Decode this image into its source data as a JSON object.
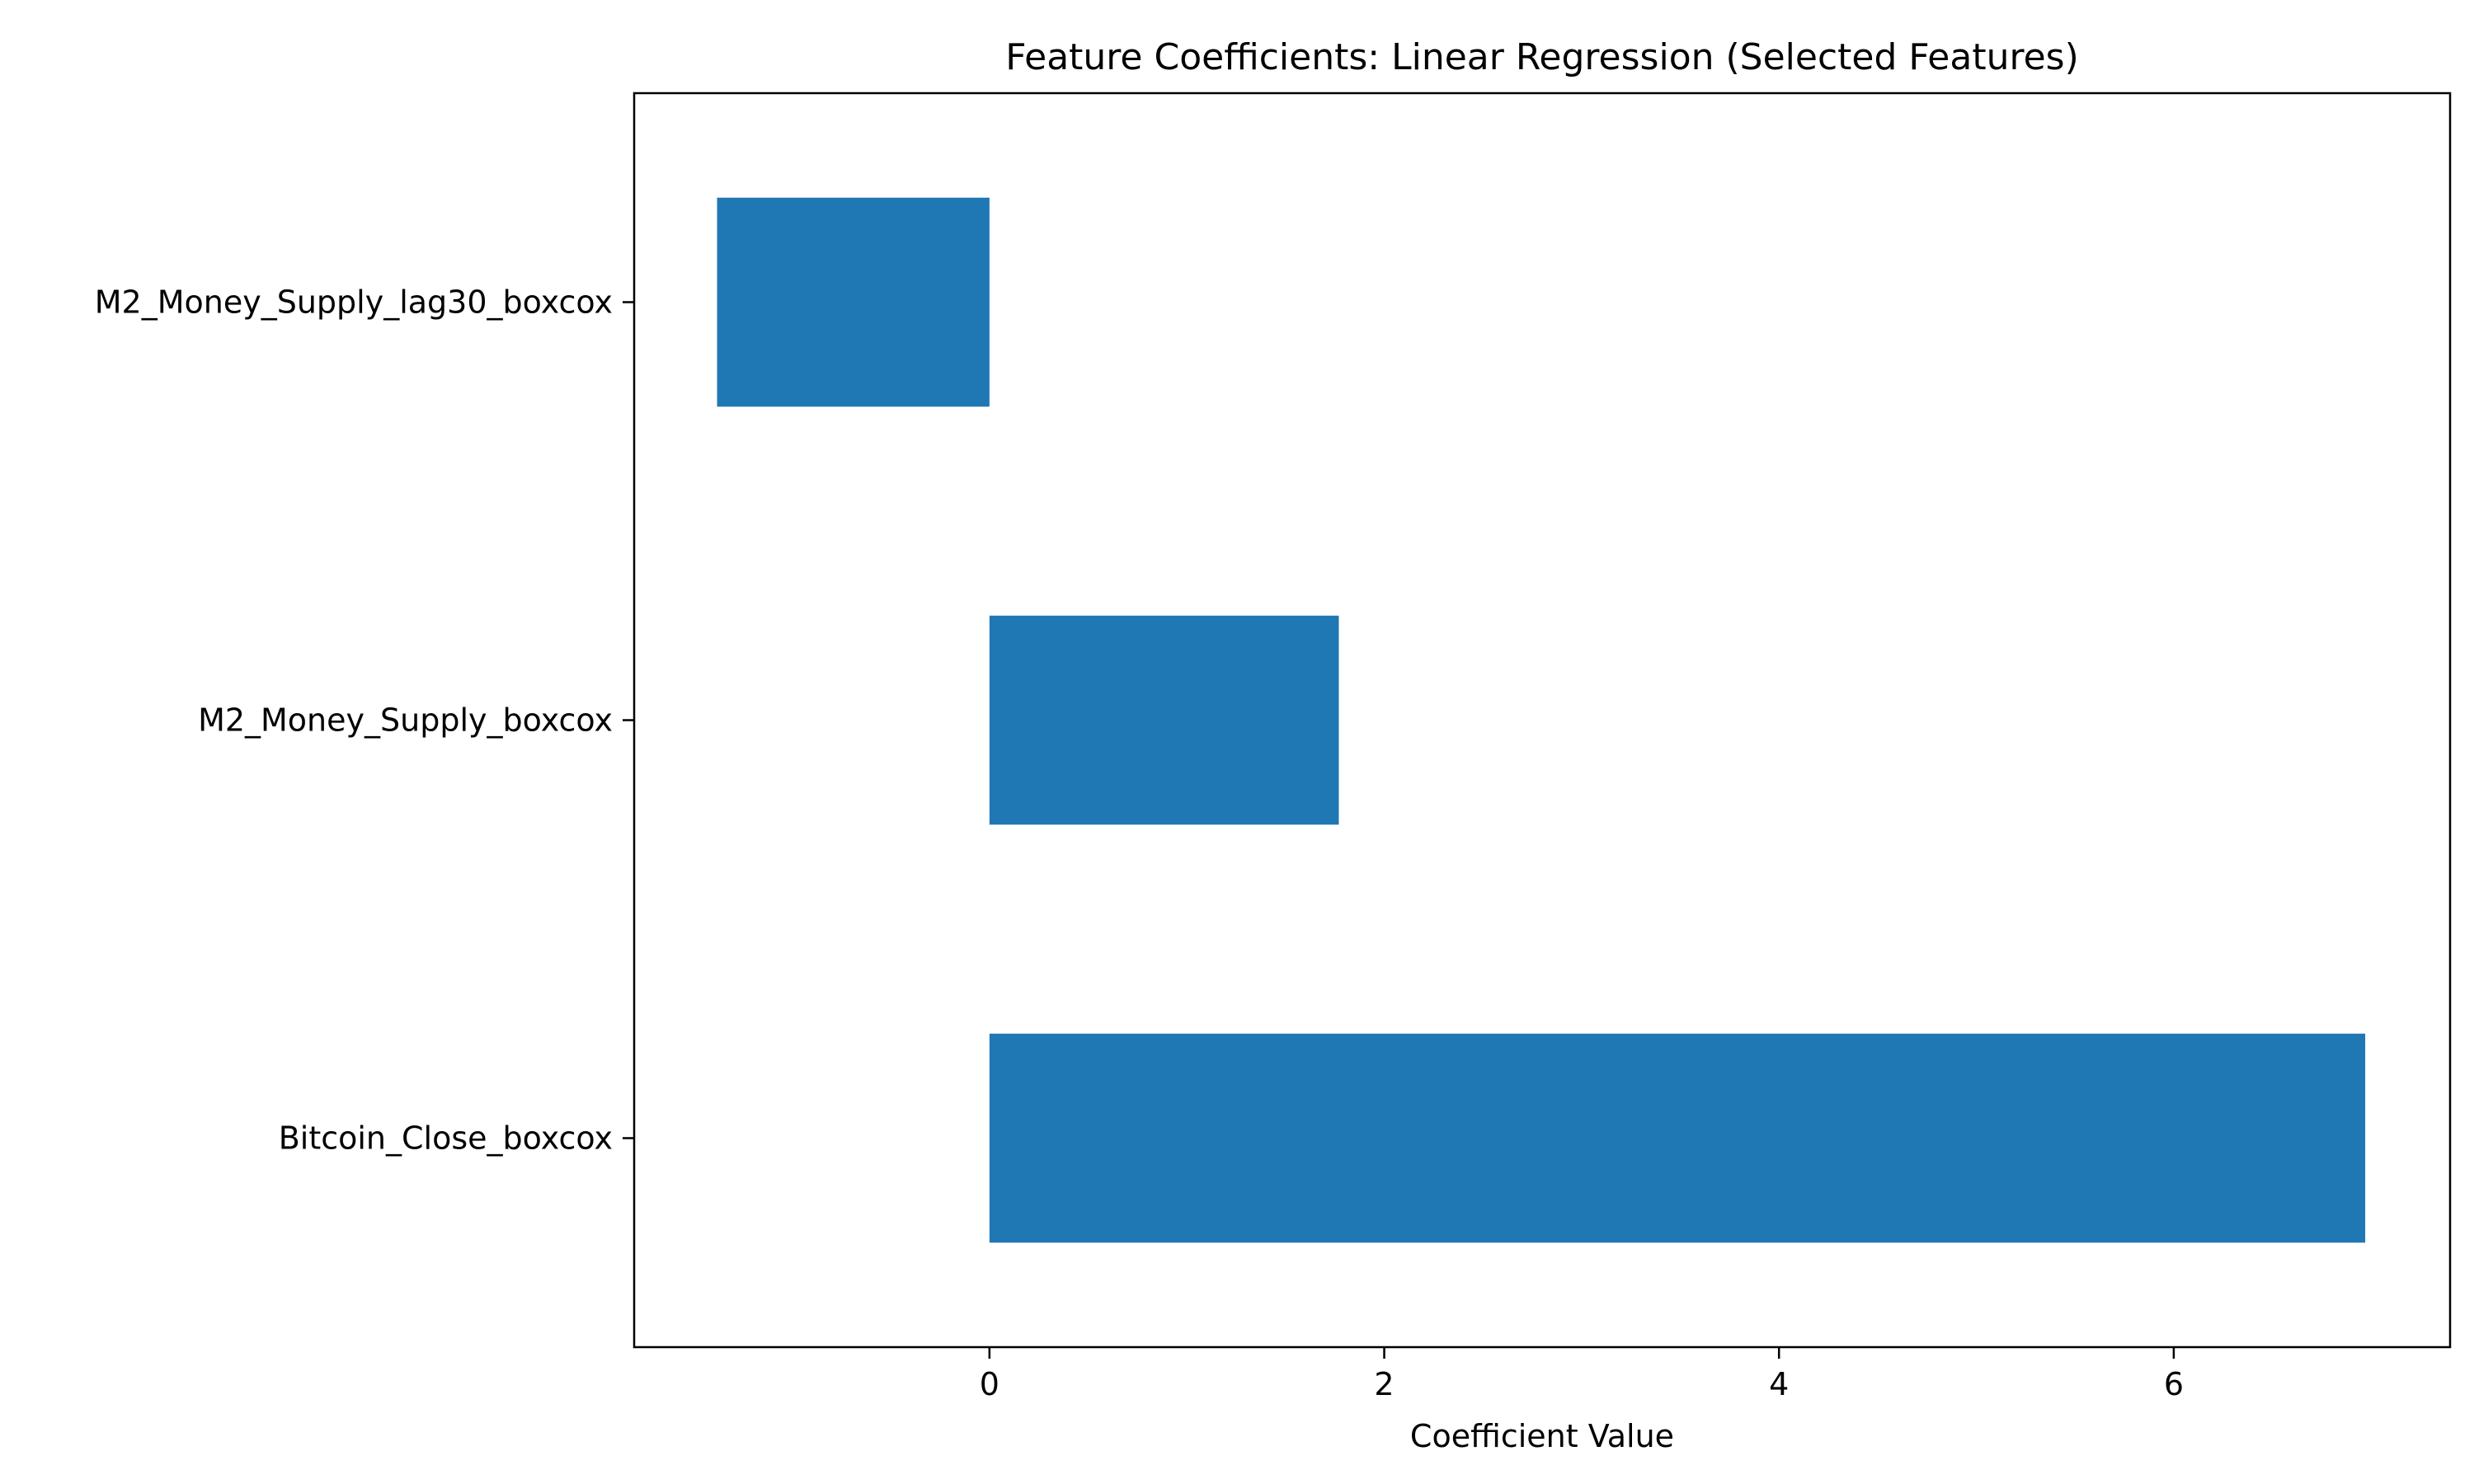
{
  "chart_data": {
    "type": "bar",
    "orientation": "horizontal",
    "title": "Feature Coefficients: Linear Regression (Selected Features)",
    "xlabel": "Coefficient Value",
    "ylabel": "",
    "categories": [
      "Bitcoin_Close_boxcox",
      "M2_Money_Supply_boxcox",
      "M2_Money_Supply_lag30_boxcox"
    ],
    "values": [
      6.97,
      1.77,
      -1.38
    ],
    "xlim": [
      -1.8,
      7.4
    ],
    "xticks": [
      0,
      2,
      4,
      6
    ],
    "grid": false,
    "legend": "none",
    "bar_color": "#1f77b4"
  }
}
